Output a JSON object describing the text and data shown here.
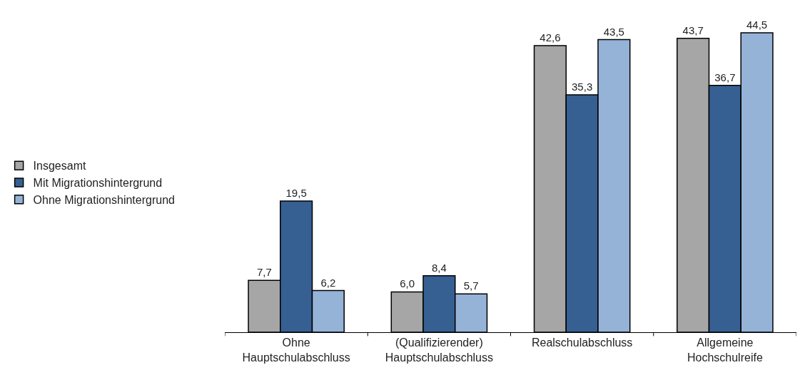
{
  "chart_data": {
    "type": "bar",
    "categories": [
      "Ohne Hauptschulabschluss",
      "(Qualifizierender) Hauptschulabschluss",
      "Realschulabschluss",
      "Allgemeine Hochschulreife"
    ],
    "series": [
      {
        "name": "Insgesamt",
        "color": "#a6a6a6",
        "values": [
          7.7,
          6.0,
          42.6,
          43.7
        ],
        "value_labels": [
          "7,7",
          "6,0",
          "42,6",
          "43,7"
        ]
      },
      {
        "name": "Mit Migrationshintergrund",
        "color": "#366092",
        "values": [
          19.5,
          8.4,
          35.3,
          36.7
        ],
        "value_labels": [
          "19,5",
          "8,4",
          "35,3",
          "36,7"
        ]
      },
      {
        "name": "Ohne Migrationshintergrund",
        "color": "#95b3d7",
        "values": [
          6.2,
          5.7,
          43.5,
          44.5
        ],
        "value_labels": [
          "6,2",
          "5,7",
          "43,5",
          "44,5"
        ]
      }
    ],
    "legend": "left"
  }
}
